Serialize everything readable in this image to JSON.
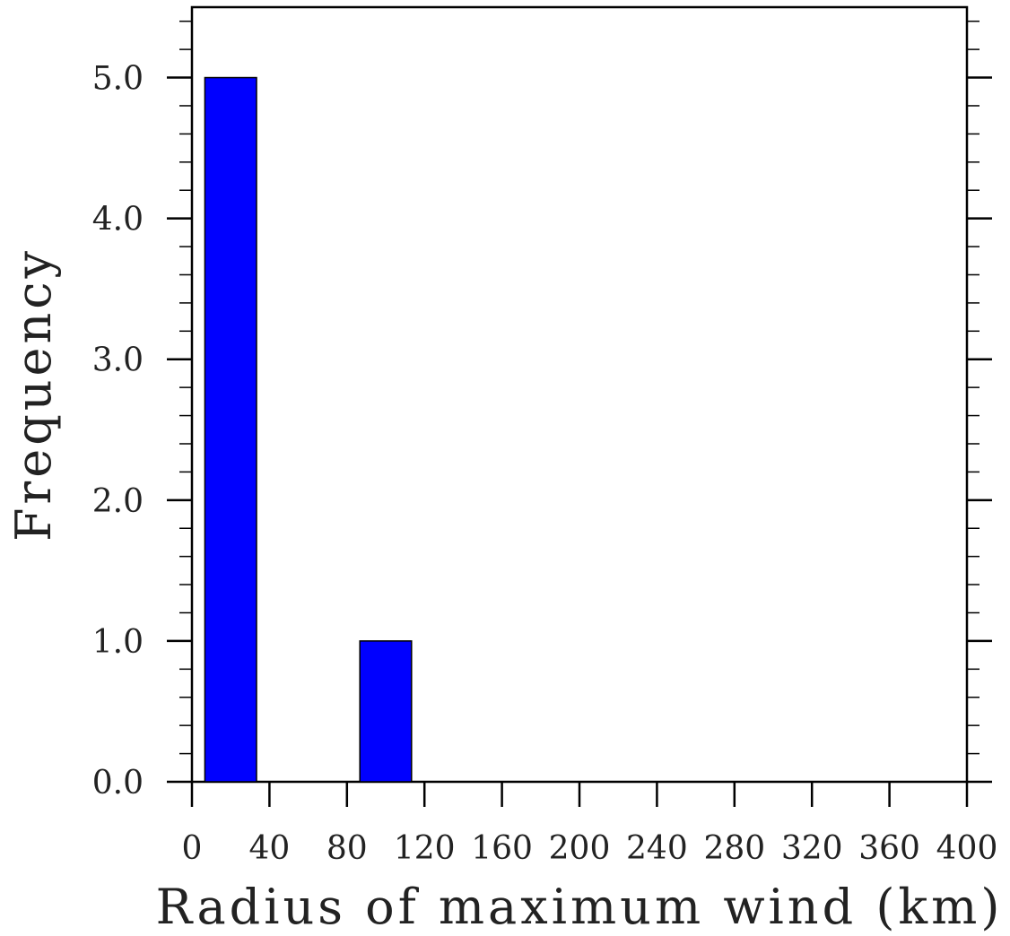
{
  "chart_data": {
    "type": "bar",
    "bins": [
      {
        "x0": 0,
        "x1": 40,
        "value": 5
      },
      {
        "x0": 40,
        "x1": 80,
        "value": 0
      },
      {
        "x0": 80,
        "x1": 120,
        "value": 1
      },
      {
        "x0": 120,
        "x1": 160,
        "value": 0
      },
      {
        "x0": 160,
        "x1": 200,
        "value": 0
      },
      {
        "x0": 200,
        "x1": 240,
        "value": 0
      },
      {
        "x0": 240,
        "x1": 280,
        "value": 0
      },
      {
        "x0": 280,
        "x1": 320,
        "value": 0
      },
      {
        "x0": 320,
        "x1": 360,
        "value": 0
      },
      {
        "x0": 360,
        "x1": 400,
        "value": 0
      }
    ],
    "xlabel": "Radius of maximum wind (km)",
    "ylabel": "Frequency",
    "xlim": [
      0,
      400
    ],
    "ylim": [
      0,
      5.5
    ],
    "x_ticks": [
      "0",
      "40",
      "80",
      "120",
      "160",
      "200",
      "240",
      "280",
      "320",
      "360",
      "400"
    ],
    "y_ticks": [
      "0.0",
      "1.0",
      "2.0",
      "3.0",
      "4.0",
      "5.0"
    ],
    "y_minor_step": 0.2,
    "grid": false,
    "bar_color": "#0000ff",
    "bar_edge_color": "#000000"
  }
}
